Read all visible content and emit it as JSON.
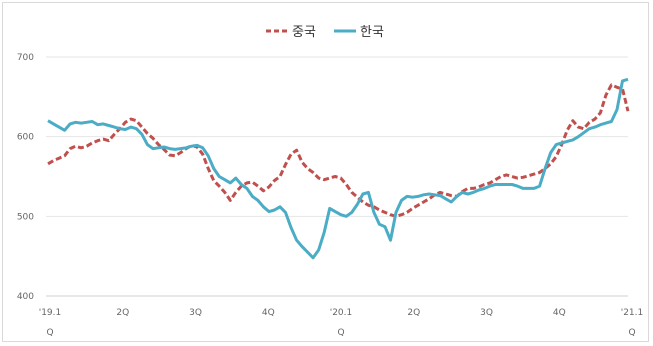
{
  "chart_data": {
    "type": "line",
    "title": "",
    "xlabel": "",
    "ylabel": "",
    "ylim": [
      400,
      700
    ],
    "yticks": [
      "700",
      "600",
      "500",
      "400"
    ],
    "xtick_labels": [
      {
        "l1": "'19.1",
        "l2": "Q"
      },
      {
        "l1": "2Q",
        "l2": ""
      },
      {
        "l1": "3Q",
        "l2": ""
      },
      {
        "l1": "4Q",
        "l2": ""
      },
      {
        "l1": "'20.1",
        "l2": "Q"
      },
      {
        "l1": "2Q",
        "l2": ""
      },
      {
        "l1": "3Q",
        "l2": ""
      },
      {
        "l1": "4Q",
        "l2": ""
      },
      {
        "l1": "'21.1",
        "l2": "Q"
      }
    ],
    "legend_position": "top-center",
    "grid": true,
    "series": [
      {
        "name": "중국",
        "color": "#c0504d",
        "style": "dashed",
        "values": [
          566,
          570,
          573,
          576,
          585,
          588,
          586,
          588,
          592,
          595,
          597,
          595,
          603,
          610,
          618,
          622,
          620,
          612,
          604,
          598,
          590,
          584,
          577,
          576,
          580,
          585,
          589,
          587,
          578,
          560,
          545,
          538,
          530,
          520,
          530,
          538,
          542,
          543,
          538,
          532,
          537,
          545,
          550,
          565,
          578,
          583,
          568,
          560,
          555,
          548,
          546,
          548,
          550,
          548,
          540,
          530,
          524,
          518,
          514,
          512,
          508,
          505,
          502,
          500,
          502,
          505,
          510,
          514,
          518,
          522,
          527,
          530,
          528,
          526,
          525,
          531,
          535,
          535,
          537,
          540,
          542,
          546,
          550,
          552,
          550,
          548,
          549,
          551,
          553,
          555,
          560,
          566,
          575,
          590,
          608,
          620,
          612,
          610,
          618,
          622,
          630,
          652,
          665,
          662,
          660,
          632
        ]
      },
      {
        "name": "한국",
        "color": "#4bacc6",
        "style": "solid",
        "values": [
          620,
          616,
          612,
          608,
          616,
          618,
          617,
          618,
          619,
          615,
          616,
          614,
          612,
          610,
          609,
          612,
          610,
          603,
          590,
          585,
          586,
          587,
          585,
          584,
          585,
          586,
          588,
          589,
          586,
          576,
          560,
          550,
          546,
          542,
          548,
          540,
          535,
          525,
          520,
          512,
          506,
          508,
          512,
          505,
          486,
          470,
          462,
          455,
          448,
          458,
          480,
          510,
          506,
          502,
          500,
          505,
          515,
          528,
          530,
          505,
          490,
          487,
          470,
          505,
          520,
          525,
          524,
          525,
          527,
          528,
          527,
          526,
          522,
          518,
          525,
          530,
          528,
          530,
          533,
          535,
          538,
          540,
          540,
          540,
          540,
          538,
          535,
          535,
          535,
          538,
          560,
          580,
          590,
          592,
          594,
          596,
          600,
          605,
          610,
          612,
          615,
          617,
          619,
          634,
          670,
          672
        ]
      }
    ]
  }
}
